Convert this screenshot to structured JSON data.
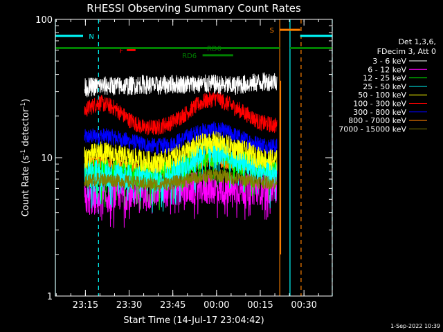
{
  "chart_data": {
    "type": "line",
    "title": "RHESSI Observing Summary Count Rates",
    "xlabel": "Start Time (14-Jul-17 23:04:42)",
    "ylabel_parts": [
      "Count Rate (s",
      "-1",
      " detector",
      "-1",
      ")"
    ],
    "yscale": "log",
    "ylim": [
      1,
      100
    ],
    "xlim": [
      0,
      95
    ],
    "x_unit": "minutes after 2017-07-14 23:04:42",
    "y_ticks": [
      {
        "value": 1,
        "label": "1"
      },
      {
        "value": 10,
        "label": "10"
      },
      {
        "value": 100,
        "label": "100"
      }
    ],
    "x_ticks": [
      {
        "value": 10.3,
        "label": "23:15"
      },
      {
        "value": 25.3,
        "label": "23:30"
      },
      {
        "value": 40.3,
        "label": "23:45"
      },
      {
        "value": 55.3,
        "label": "00:00"
      },
      {
        "value": 70.3,
        "label": "00:15"
      },
      {
        "value": 85.3,
        "label": "00:30"
      }
    ],
    "legend_header": [
      "Det 1,3,6,",
      "FDecim 3, Att 0"
    ],
    "series": [
      {
        "name": "3 - 6 keV",
        "color": "#ffffff",
        "values_t": [
          10,
          15,
          20,
          25,
          30,
          35,
          40,
          45,
          50,
          55,
          60,
          65,
          70,
          76
        ],
        "values_y": [
          32,
          33,
          33,
          33,
          34,
          33,
          34,
          34,
          34,
          34,
          33,
          34,
          35,
          36
        ],
        "jitter": 0.07
      },
      {
        "name": "6 - 12 keV",
        "color": "#ff00ff",
        "values_t": [
          10,
          15,
          20,
          25,
          30,
          35,
          40,
          45,
          50,
          55,
          60,
          65,
          70,
          76
        ],
        "values_y": [
          5,
          5,
          5.4,
          5.5,
          5.6,
          5.6,
          5.8,
          5.9,
          6,
          6,
          5.9,
          5.9,
          6,
          6.2
        ],
        "jitter": 0.12
      },
      {
        "name": "12 - 25 keV",
        "color": "#00ff00",
        "values_t": [
          10,
          15,
          20,
          25,
          30,
          35,
          40,
          45,
          50,
          55,
          60,
          65,
          70,
          76
        ],
        "values_y": [
          7.5,
          8,
          8,
          7.8,
          7.5,
          7.4,
          8,
          9,
          10.5,
          11,
          10,
          9,
          8.5,
          8
        ],
        "jitter": 0.1
      },
      {
        "name": "25 - 50 keV",
        "color": "#00ffff",
        "values_t": [
          10,
          15,
          20,
          25,
          30,
          35,
          40,
          45,
          50,
          55,
          60,
          65,
          70,
          76
        ],
        "values_y": [
          7.5,
          7.8,
          7.6,
          7.2,
          7,
          7,
          7.6,
          9,
          10.8,
          11.5,
          10.5,
          9,
          8,
          7.5
        ],
        "jitter": 0.1
      },
      {
        "name": "50 - 100 keV",
        "color": "#ffff00",
        "values_t": [
          10,
          15,
          20,
          25,
          30,
          35,
          40,
          45,
          50,
          55,
          60,
          65,
          70,
          76
        ],
        "values_y": [
          10,
          11,
          10.5,
          10,
          9.5,
          9.2,
          10,
          11,
          12.5,
          13,
          12,
          11,
          10,
          9.5
        ],
        "jitter": 0.08
      },
      {
        "name": "100 - 300 keV",
        "color": "#ff0000",
        "values_t": [
          10,
          15,
          20,
          25,
          30,
          35,
          40,
          45,
          50,
          55,
          60,
          65,
          70,
          76
        ],
        "values_y": [
          22,
          25,
          23,
          19,
          16.5,
          16.5,
          18,
          21,
          25,
          27,
          24,
          21,
          18,
          17
        ],
        "jitter": 0.06
      },
      {
        "name": "300 - 800 keV",
        "color": "#0000ff",
        "values_t": [
          10,
          15,
          20,
          25,
          30,
          35,
          40,
          45,
          50,
          55,
          60,
          65,
          70,
          76
        ],
        "values_y": [
          14,
          14.5,
          14,
          13.2,
          12.5,
          12,
          12.5,
          14,
          15.5,
          16,
          15,
          13.5,
          12.5,
          12
        ],
        "jitter": 0.06
      },
      {
        "name": "800 - 7000 keV",
        "color": "#ff8000",
        "values_t": [
          10,
          15,
          20,
          25,
          30,
          35,
          40,
          45,
          50,
          55,
          60,
          65,
          70,
          76
        ],
        "values_y": [
          9,
          9.5,
          9,
          8.5,
          8.2,
          8,
          8.3,
          8.8,
          9.5,
          9.8,
          9.3,
          8.7,
          8.5,
          8.4
        ],
        "jitter": 0.06
      },
      {
        "name": "7000 - 15000 keV",
        "color": "#808000",
        "values_t": [
          10,
          15,
          20,
          25,
          30,
          35,
          40,
          45,
          50,
          55,
          60,
          65,
          70,
          76
        ],
        "values_y": [
          6.8,
          7,
          6.9,
          6.7,
          6.5,
          6.4,
          6.6,
          6.9,
          7.3,
          7.5,
          7.2,
          6.9,
          6.7,
          6.6
        ],
        "jitter": 0.05
      }
    ],
    "segments": [
      {
        "label": "N",
        "color": "#00ffff",
        "y": 76,
        "x0": 0,
        "x1": 9.5,
        "label_x": 11.5
      },
      {
        "label": "",
        "color": "#00ffff",
        "y": 76,
        "x0": 84,
        "x1": 95
      },
      {
        "label": "F",
        "color": "#ff0000",
        "y": 60,
        "x0": 24.5,
        "x1": 27.5,
        "label_x": 22
      },
      {
        "label": "S",
        "color": "#ff8000",
        "y": 84,
        "x0": 77,
        "x1": 84,
        "label_x": 73.5
      },
      {
        "label": "RD0",
        "color": "#008000",
        "y": 62,
        "x0": 0,
        "x1": 77,
        "label_x": 52
      },
      {
        "label": "",
        "color": "#008000",
        "y": 62,
        "x0": 80.5,
        "x1": 95
      },
      {
        "label": "RD6",
        "color": "#008000",
        "y": 55,
        "x0": 50.5,
        "x1": 61,
        "label_x": 43.5
      }
    ],
    "vlines": [
      {
        "x": 0,
        "color": "#00ffff",
        "dash": false
      },
      {
        "x": 14.8,
        "color": "#00ffff",
        "dash": true
      },
      {
        "x": 77,
        "color": "#ff8000",
        "dash": false
      },
      {
        "x": 80.5,
        "color": "#00ffff",
        "dash": false
      },
      {
        "x": 84.3,
        "color": "#ff8000",
        "dash": true
      },
      {
        "x": 95,
        "color": "#00ffff",
        "dash": true
      }
    ],
    "grid": false,
    "legend_position": "right"
  },
  "footer": {
    "timestamp": "1-Sep-2022 10:39"
  }
}
